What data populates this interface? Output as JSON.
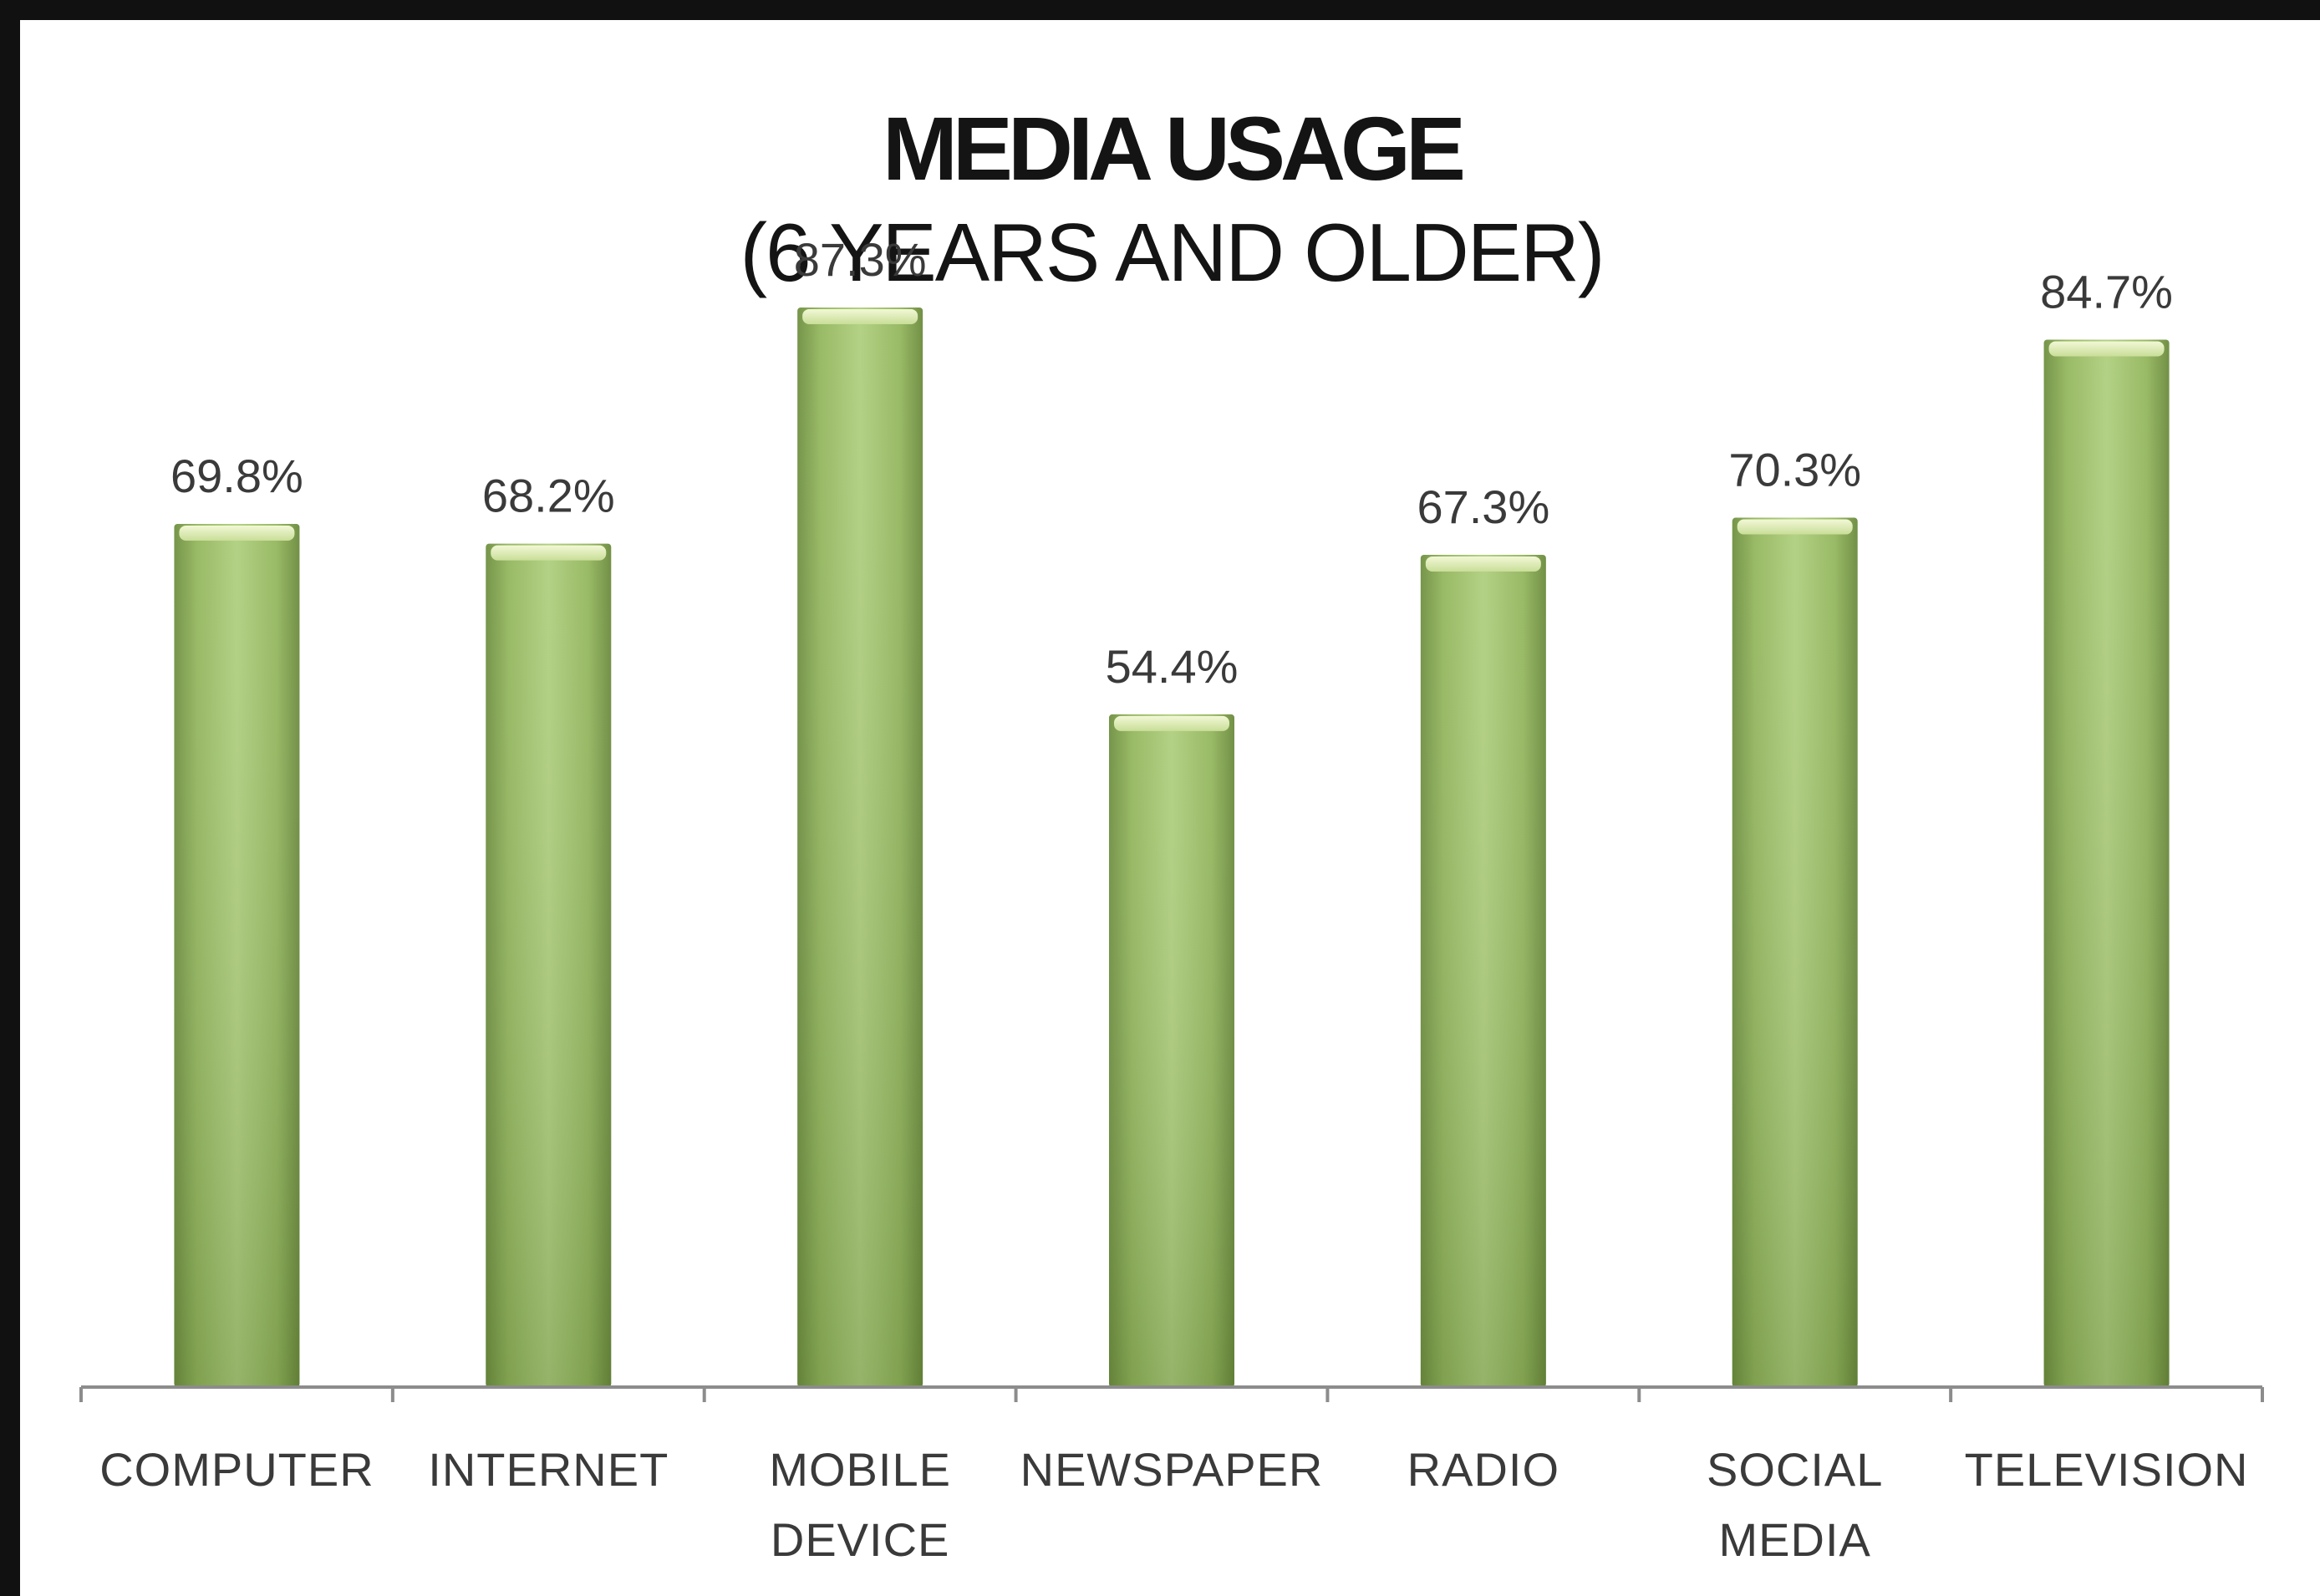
{
  "chart_data": {
    "type": "bar",
    "title": "MEDIA USAGE",
    "subtitle": "(6 YEARS AND OLDER)",
    "categories": [
      [
        "COMPUTER"
      ],
      [
        "INTERNET"
      ],
      [
        "MOBILE",
        "DEVICE"
      ],
      [
        "NEWSPAPER"
      ],
      [
        "RADIO"
      ],
      [
        "SOCIAL",
        "MEDIA"
      ],
      [
        "TELEVISION"
      ]
    ],
    "values": [
      69.8,
      68.2,
      87.3,
      54.4,
      67.3,
      70.3,
      84.7
    ],
    "data_labels": [
      "69.8%",
      "68.2%",
      "87.3%",
      "54.4%",
      "67.3%",
      "70.3%",
      "84.7%"
    ],
    "ylim": [
      0,
      100
    ],
    "grid": false,
    "legend": "none",
    "colors": {
      "bar_light": "#b4d083",
      "bar_mid": "#98ba63",
      "bar_dark": "#6a8a3c",
      "bar_top": "#e4f0b8",
      "axis": "#8c8c8c",
      "frame": "#111111"
    }
  }
}
